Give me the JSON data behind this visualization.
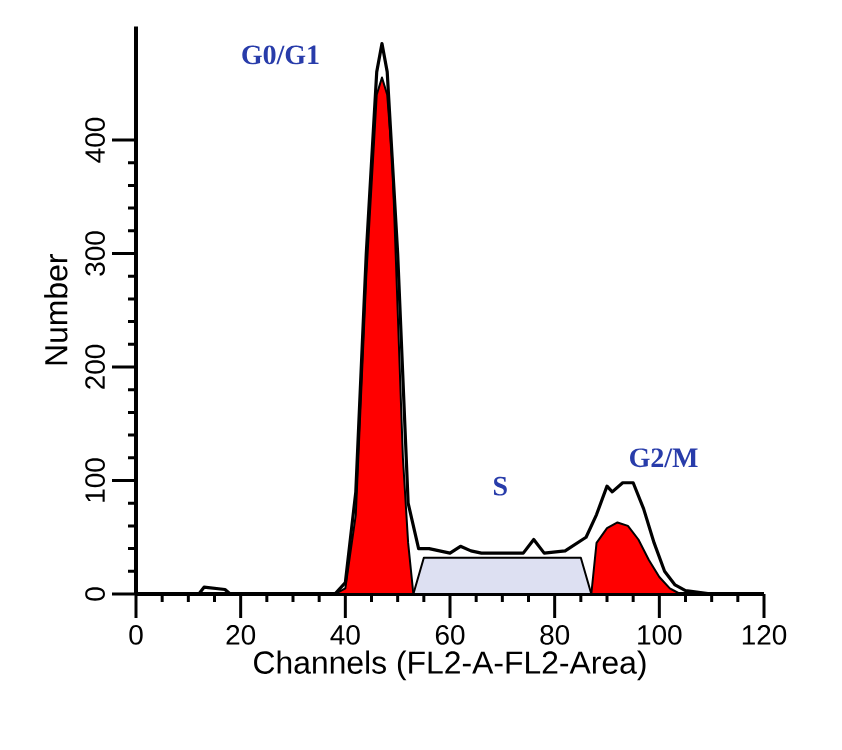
{
  "chart_data": {
    "type": "area",
    "xlabel": "Channels (FL2-A-FL2-Area)",
    "ylabel": "Number",
    "xlim": [
      0,
      120
    ],
    "xticks": [
      0,
      20,
      40,
      60,
      80,
      100,
      120
    ],
    "ylim": [
      0,
      500
    ],
    "yticks": [
      0,
      100,
      200,
      300,
      400
    ],
    "grid": false,
    "marker": "none",
    "annotations": [
      "G0/G1",
      "S",
      "G2/M"
    ],
    "series": [
      {
        "color": "#dde0f2",
        "x": [
          53,
          55,
          85,
          87
        ],
        "values": [
          0,
          32,
          32,
          0
        ]
      },
      {
        "color": "#ff0000",
        "x": [
          38,
          40,
          42,
          44,
          46,
          47,
          48,
          49,
          50,
          51,
          52,
          53
        ],
        "values": [
          0,
          5,
          70,
          280,
          440,
          455,
          440,
          380,
          250,
          120,
          45,
          0
        ]
      },
      {
        "color": "#ff0000",
        "x": [
          87,
          88,
          90,
          92,
          94,
          96,
          98,
          100,
          102,
          104
        ],
        "values": [
          0,
          45,
          58,
          63,
          60,
          48,
          30,
          15,
          5,
          0
        ]
      },
      {
        "type": "line",
        "color": "#000000",
        "line_style": "solid",
        "x": [
          10,
          12,
          13,
          17,
          18,
          38,
          40,
          42,
          44,
          46,
          47,
          48,
          50,
          52,
          54,
          56,
          60,
          62,
          64,
          66,
          70,
          74,
          76,
          78,
          82,
          86,
          88,
          90,
          91,
          93,
          95,
          97,
          99,
          101,
          103,
          105,
          110
        ],
        "values": [
          0,
          0,
          6,
          4,
          0,
          0,
          10,
          90,
          300,
          460,
          485,
          460,
          300,
          80,
          40,
          40,
          36,
          42,
          38,
          36,
          36,
          36,
          48,
          36,
          38,
          50,
          70,
          95,
          90,
          98,
          98,
          75,
          45,
          20,
          8,
          3,
          0
        ]
      }
    ]
  }
}
